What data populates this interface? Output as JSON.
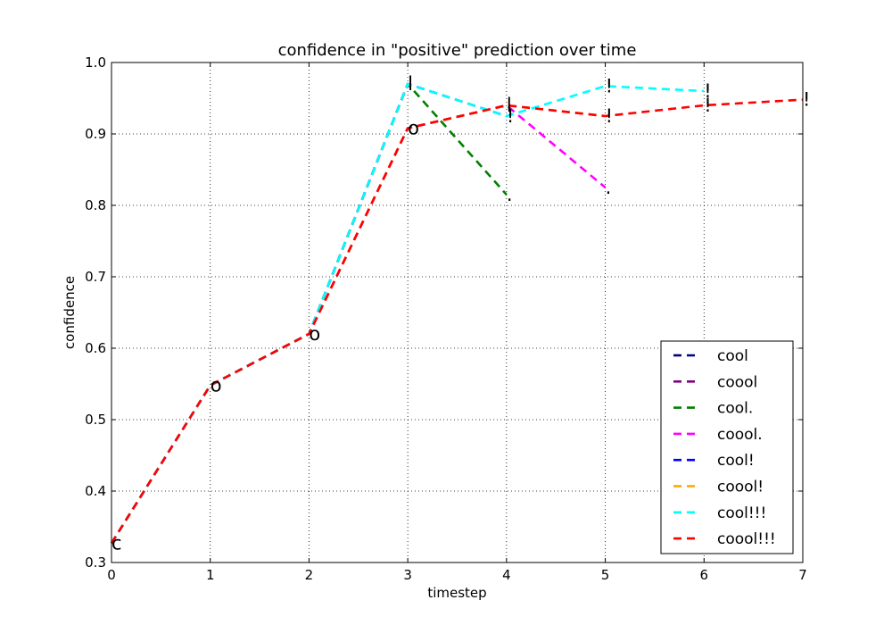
{
  "chart_data": {
    "type": "line",
    "title": "confidence in \"positive\" prediction over time",
    "xlabel": "timestep",
    "ylabel": "confidence",
    "xlim": [
      0,
      7
    ],
    "ylim": [
      0.3,
      1.0
    ],
    "x_ticks": [
      "0",
      "1",
      "2",
      "3",
      "4",
      "5",
      "6",
      "7"
    ],
    "y_ticks": [
      "0.3",
      "0.4",
      "0.5",
      "0.6",
      "0.7",
      "0.8",
      "0.9",
      "1.0"
    ],
    "grid": true,
    "legend_position": "lower-right",
    "series": [
      {
        "name": "cool",
        "color": "#000080",
        "x": [
          0,
          1,
          2,
          3
        ],
        "y": [
          0.327,
          0.548,
          0.62,
          0.97
        ],
        "chars": [
          "c",
          "o",
          "o",
          "l"
        ]
      },
      {
        "name": "coool",
        "color": "#800080",
        "x": [
          0,
          1,
          2,
          3,
          4
        ],
        "y": [
          0.327,
          0.548,
          0.62,
          0.908,
          0.94
        ],
        "chars": [
          "c",
          "o",
          "o",
          "o",
          "l"
        ]
      },
      {
        "name": "cool.",
        "color": "#008000",
        "x": [
          0,
          1,
          2,
          3,
          4
        ],
        "y": [
          0.327,
          0.548,
          0.62,
          0.97,
          0.815
        ],
        "chars": [
          "c",
          "o",
          "o",
          "l",
          "."
        ]
      },
      {
        "name": "coool.",
        "color": "#ff00ff",
        "x": [
          0,
          1,
          2,
          3,
          4,
          5
        ],
        "y": [
          0.327,
          0.548,
          0.62,
          0.908,
          0.94,
          0.825
        ],
        "chars": [
          "c",
          "o",
          "o",
          "o",
          "l",
          "."
        ]
      },
      {
        "name": "cool!",
        "color": "#0000ff",
        "x": [
          0,
          1,
          2,
          3,
          4
        ],
        "y": [
          0.327,
          0.548,
          0.62,
          0.97,
          0.925
        ],
        "chars": [
          "c",
          "o",
          "o",
          "l",
          "!"
        ]
      },
      {
        "name": "coool!",
        "color": "#ffa500",
        "x": [
          0,
          1,
          2,
          3,
          4,
          5
        ],
        "y": [
          0.327,
          0.548,
          0.62,
          0.908,
          0.94,
          0.925
        ],
        "chars": [
          "c",
          "o",
          "o",
          "o",
          "l",
          "!"
        ]
      },
      {
        "name": "cool!!!",
        "color": "#00ffff",
        "x": [
          0,
          1,
          2,
          3,
          4,
          5,
          6
        ],
        "y": [
          0.327,
          0.548,
          0.62,
          0.97,
          0.925,
          0.967,
          0.96
        ],
        "chars": [
          "c",
          "o",
          "o",
          "l",
          "!",
          "!",
          "!"
        ]
      },
      {
        "name": "coool!!!",
        "color": "#ff0000",
        "x": [
          0,
          1,
          2,
          3,
          4,
          5,
          6,
          7
        ],
        "y": [
          0.327,
          0.548,
          0.62,
          0.908,
          0.94,
          0.925,
          0.94,
          0.948
        ],
        "chars": [
          "c",
          "o",
          "o",
          "o",
          "l",
          "!",
          "!",
          "!"
        ]
      }
    ]
  }
}
